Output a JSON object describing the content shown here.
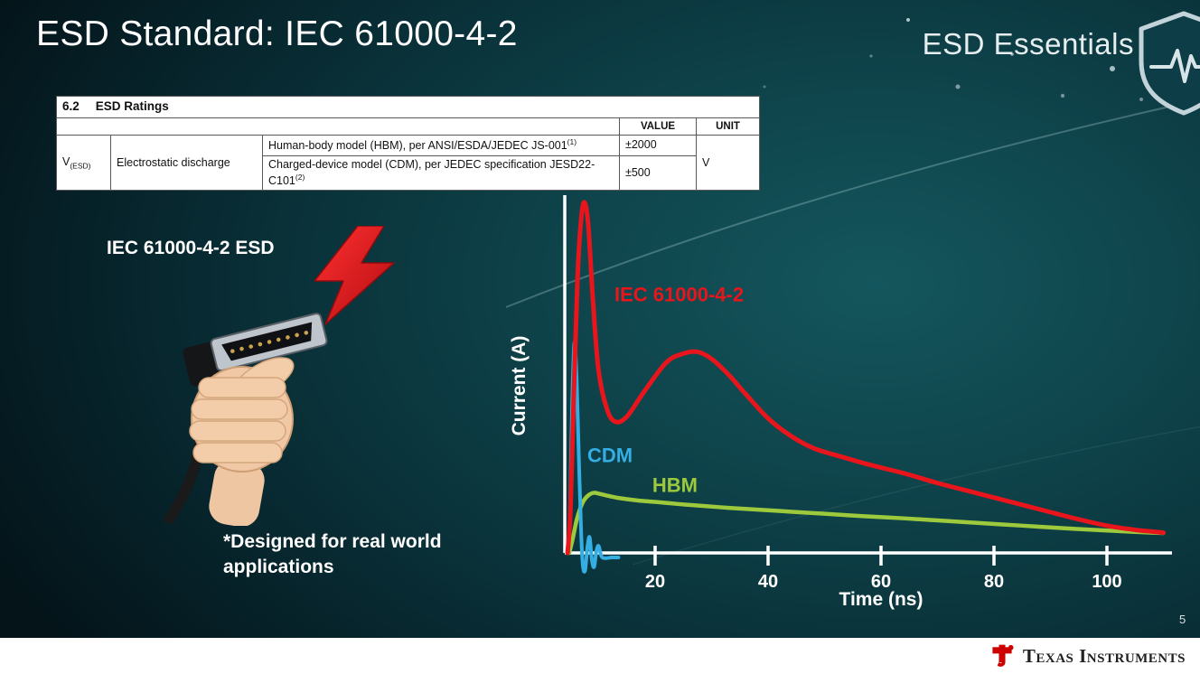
{
  "slide": {
    "title": "ESD Standard: IEC 61000-4-2",
    "program_name": "ESD Essentials",
    "page_number": "5"
  },
  "ratings_table": {
    "section_number": "6.2",
    "section_title": "ESD Ratings",
    "col_value": "VALUE",
    "col_unit": "UNIT",
    "symbol_base": "V",
    "symbol_sub": "(ESD)",
    "parameter": "Electrostatic discharge",
    "rows": [
      {
        "description": "Human-body model (HBM), per ANSI/ESDA/JEDEC JS-001",
        "footnote": "(1)",
        "value": "±2000"
      },
      {
        "description": "Charged-device model (CDM), per JEDEC specification JESD22-C101",
        "footnote": "(2)",
        "value": "±500"
      }
    ],
    "unit": "V"
  },
  "left_panel": {
    "illustration_label": "IEC 61000-4-2 ESD",
    "note": "*Designed for real world applications"
  },
  "chart_data": {
    "type": "line",
    "title": "",
    "xlabel": "Time (ns)",
    "ylabel": "Current (A)",
    "x_ticks": [
      20,
      40,
      60,
      80,
      100
    ],
    "xlim": [
      0,
      110
    ],
    "y_ticks": [],
    "y_scale_note": "current normalized to IEC 61000-4-2 first peak = 1.0",
    "legend_position": "inline-labels",
    "grid": false,
    "series": [
      {
        "name": "IEC 61000-4-2",
        "color": "#e8151c",
        "label_pos": [
          12.8,
          0.72
        ],
        "points": [
          [
            4.5,
            0
          ],
          [
            5.0,
            0.12
          ],
          [
            5.6,
            0.45
          ],
          [
            6.3,
            0.8
          ],
          [
            7.0,
            0.97
          ],
          [
            7.6,
            1.0
          ],
          [
            8.2,
            0.93
          ],
          [
            9.0,
            0.72
          ],
          [
            10.0,
            0.52
          ],
          [
            11.5,
            0.41
          ],
          [
            13.0,
            0.375
          ],
          [
            15,
            0.39
          ],
          [
            18,
            0.46
          ],
          [
            22,
            0.545
          ],
          [
            25,
            0.57
          ],
          [
            27.5,
            0.575
          ],
          [
            30,
            0.555
          ],
          [
            33,
            0.51
          ],
          [
            36,
            0.455
          ],
          [
            40,
            0.385
          ],
          [
            44,
            0.335
          ],
          [
            48,
            0.3
          ],
          [
            53,
            0.275
          ],
          [
            58,
            0.252
          ],
          [
            64,
            0.228
          ],
          [
            70,
            0.2
          ],
          [
            76,
            0.175
          ],
          [
            82,
            0.15
          ],
          [
            88,
            0.125
          ],
          [
            94,
            0.1
          ],
          [
            100,
            0.078
          ],
          [
            105,
            0.066
          ],
          [
            110,
            0.058
          ]
        ]
      },
      {
        "name": "CDM",
        "color": "#35aee3",
        "label_pos": [
          8.0,
          0.26
        ],
        "points": [
          [
            4.6,
            0
          ],
          [
            4.9,
            0.1
          ],
          [
            5.3,
            0.42
          ],
          [
            5.7,
            0.6
          ],
          [
            6.1,
            0.5
          ],
          [
            6.5,
            0.27
          ],
          [
            6.9,
            0.06
          ],
          [
            7.2,
            -0.035
          ],
          [
            7.6,
            -0.05
          ],
          [
            8.0,
            0.015
          ],
          [
            8.4,
            0.045
          ],
          [
            8.8,
            -0.02
          ],
          [
            9.2,
            -0.04
          ],
          [
            9.6,
            0.005
          ],
          [
            10.0,
            0.02
          ],
          [
            10.5,
            -0.01
          ],
          [
            11.2,
            -0.015
          ],
          [
            12.3,
            -0.013
          ],
          [
            13.5,
            -0.013
          ]
        ]
      },
      {
        "name": "HBM",
        "color": "#9dca3c",
        "label_pos": [
          19.5,
          0.175
        ],
        "points": [
          [
            4.8,
            0
          ],
          [
            5.4,
            0.04
          ],
          [
            6.2,
            0.1
          ],
          [
            7.2,
            0.145
          ],
          [
            8.2,
            0.165
          ],
          [
            9.2,
            0.172
          ],
          [
            10.4,
            0.168
          ],
          [
            12,
            0.162
          ],
          [
            14,
            0.156
          ],
          [
            17,
            0.15
          ],
          [
            20,
            0.146
          ],
          [
            24,
            0.14
          ],
          [
            28,
            0.135
          ],
          [
            33,
            0.129
          ],
          [
            38,
            0.124
          ],
          [
            44,
            0.118
          ],
          [
            50,
            0.112
          ],
          [
            57,
            0.105
          ],
          [
            64,
            0.099
          ],
          [
            71,
            0.092
          ],
          [
            78,
            0.085
          ],
          [
            85,
            0.078
          ],
          [
            92,
            0.071
          ],
          [
            99,
            0.065
          ],
          [
            105,
            0.06
          ],
          [
            110,
            0.057
          ]
        ]
      }
    ]
  },
  "footer": {
    "brand": "Texas Instruments"
  }
}
